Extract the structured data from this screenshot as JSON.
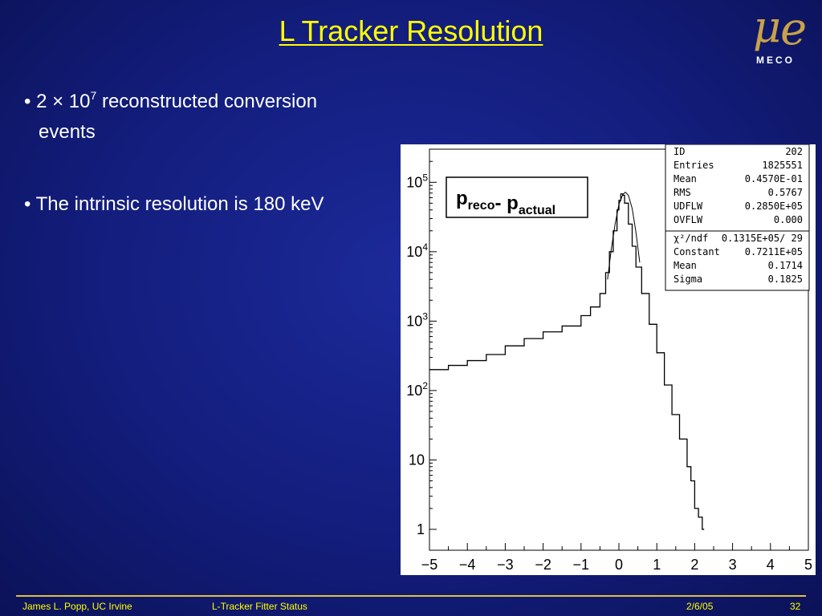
{
  "slide": {
    "title": "L Tracker Resolution",
    "bullets": {
      "b1_prefix": "2 × 10",
      "b1_exp": "7",
      "b1_rest": " reconstructed conversion",
      "b1_line2": "events",
      "b2": "The intrinsic resolution is 180 keV"
    },
    "logo": {
      "word": "MECO",
      "mu": "μ",
      "e": "e"
    },
    "footer": {
      "author": "James L. Popp, UC Irvine",
      "talk": "L-Tracker Fitter Status",
      "date": "2/6/05",
      "page": "32"
    }
  },
  "chart_data": {
    "type": "line",
    "plot_label": "p_reco - p_actual",
    "x_ticks": [
      -5,
      -4,
      -3,
      -2,
      -1,
      0,
      1,
      2,
      3,
      4,
      5
    ],
    "xlim": [
      -5,
      5
    ],
    "y_scale": "log",
    "ylim": [
      0.5,
      300000
    ],
    "y_tick_labels": [
      "1",
      "10",
      "10^2",
      "10^3",
      "10^4",
      "10^5"
    ],
    "y_tick_values": [
      1,
      10,
      100,
      1000,
      10000,
      100000
    ],
    "series": [
      {
        "kind": "histogram",
        "x": [
          -5.0,
          -4.5,
          -4.0,
          -3.5,
          -3.0,
          -2.5,
          -2.0,
          -1.5,
          -1.0,
          -0.75,
          -0.5,
          -0.35,
          -0.25,
          -0.15,
          -0.05,
          0.0,
          0.05,
          0.1,
          0.15,
          0.25,
          0.35,
          0.45,
          0.6,
          0.8,
          1.0,
          1.2,
          1.4,
          1.6,
          1.8,
          1.9,
          2.0,
          2.1,
          2.2
        ],
        "y": [
          200,
          230,
          270,
          330,
          440,
          560,
          700,
          850,
          1200,
          1600,
          2500,
          5000,
          10000,
          20000,
          40000,
          55000,
          68000,
          65000,
          50000,
          25000,
          12000,
          6000,
          2500,
          900,
          350,
          120,
          45,
          20,
          8,
          5,
          2,
          1.5,
          1
        ]
      },
      {
        "kind": "gaussian_fit",
        "x": [
          -0.3,
          -0.2,
          -0.1,
          0.0,
          0.1,
          0.17,
          0.25,
          0.35,
          0.45,
          0.55
        ],
        "y": [
          4000,
          11000,
          25000,
          48000,
          66000,
          72110,
          65000,
          42000,
          19000,
          7000
        ]
      }
    ],
    "stats_box": [
      {
        "label": "ID",
        "value": "202"
      },
      {
        "label": "Entries",
        "value": "1825551"
      },
      {
        "label": "Mean",
        "value": "0.4570E-01"
      },
      {
        "label": "RMS",
        "value": "0.5767"
      },
      {
        "label": "UDFLW",
        "value": "0.2850E+05"
      },
      {
        "label": "OVFLW",
        "value": "0.000"
      }
    ],
    "fit_box": [
      {
        "label": "χ²/ndf",
        "value": "0.1315E+05/   29"
      },
      {
        "label": "Constant",
        "value": "0.7211E+05"
      },
      {
        "label": "Mean",
        "value": "0.1714"
      },
      {
        "label": "Sigma",
        "value": "0.1825"
      }
    ],
    "colors": {
      "line": "#000000",
      "background": "#ffffff"
    }
  }
}
